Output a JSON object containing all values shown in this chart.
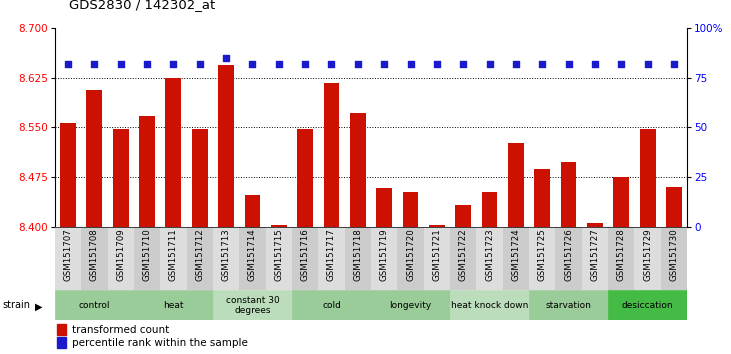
{
  "title": "GDS2830 / 142302_at",
  "samples": [
    "GSM151707",
    "GSM151708",
    "GSM151709",
    "GSM151710",
    "GSM151711",
    "GSM151712",
    "GSM151713",
    "GSM151714",
    "GSM151715",
    "GSM151716",
    "GSM151717",
    "GSM151718",
    "GSM151719",
    "GSM151720",
    "GSM151721",
    "GSM151722",
    "GSM151723",
    "GSM151724",
    "GSM151725",
    "GSM151726",
    "GSM151727",
    "GSM151728",
    "GSM151729",
    "GSM151730"
  ],
  "values": [
    8.557,
    8.607,
    8.548,
    8.567,
    8.625,
    8.547,
    8.645,
    8.448,
    8.403,
    8.547,
    8.617,
    8.572,
    8.458,
    8.452,
    8.402,
    8.432,
    8.452,
    8.527,
    8.487,
    8.497,
    8.405,
    8.475,
    8.547,
    8.46
  ],
  "percentiles": [
    82,
    82,
    82,
    82,
    82,
    82,
    85,
    82,
    82,
    82,
    82,
    82,
    82,
    82,
    82,
    82,
    82,
    82,
    82,
    82,
    82,
    82,
    82,
    82
  ],
  "bar_color": "#cc1100",
  "dot_color": "#1a1acc",
  "ylim_left": [
    8.4,
    8.7
  ],
  "ylim_right": [
    0,
    100
  ],
  "yticks_left": [
    8.4,
    8.475,
    8.55,
    8.625,
    8.7
  ],
  "yticks_right": [
    0,
    25,
    50,
    75,
    100
  ],
  "gridlines": [
    8.475,
    8.55,
    8.625
  ],
  "strain_groups": [
    {
      "label": "control",
      "start": 0,
      "end": 2,
      "color": "#99cc99"
    },
    {
      "label": "heat",
      "start": 3,
      "end": 5,
      "color": "#99cc99"
    },
    {
      "label": "constant 30\ndegrees",
      "start": 6,
      "end": 8,
      "color": "#bbddbb"
    },
    {
      "label": "cold",
      "start": 9,
      "end": 11,
      "color": "#99cc99"
    },
    {
      "label": "longevity",
      "start": 12,
      "end": 14,
      "color": "#99cc99"
    },
    {
      "label": "heat knock down",
      "start": 15,
      "end": 17,
      "color": "#bbddbb"
    },
    {
      "label": "starvation",
      "start": 18,
      "end": 20,
      "color": "#99cc99"
    },
    {
      "label": "desiccation",
      "start": 21,
      "end": 23,
      "color": "#44bb44"
    }
  ],
  "legend_red": "transformed count",
  "legend_blue": "percentile rank within the sample",
  "bar_bottom": 8.4,
  "dot_pct_value": 82
}
